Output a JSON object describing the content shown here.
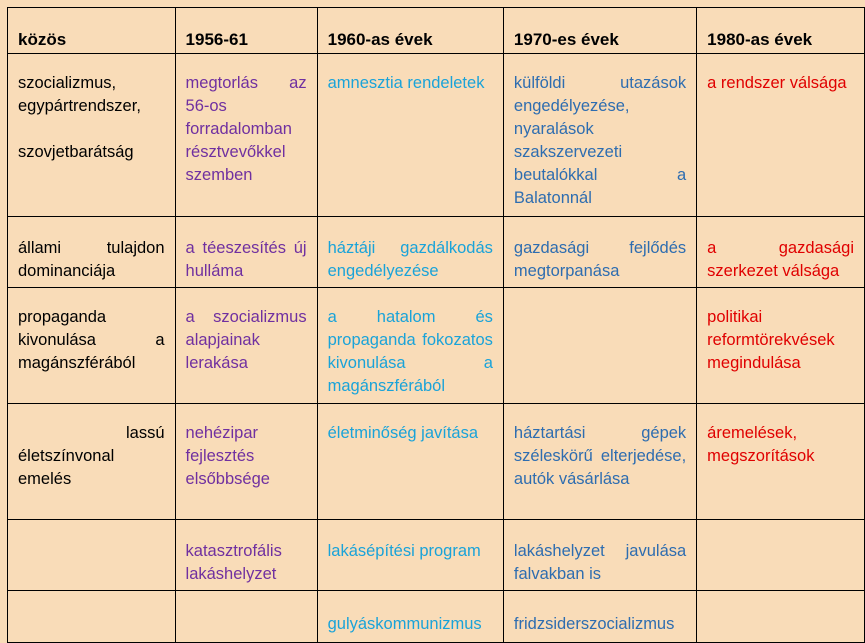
{
  "headers": [
    "közös",
    "1956-61",
    "1960-as évek",
    "1970-es évek",
    "1980-as évek"
  ],
  "rows": [
    {
      "common": [
        "szocializmus,",
        "egypártrendszer,",
        "",
        "szovjetbarátság"
      ],
      "y1956": "megtorlás az 56-os forradalomban résztvevőkkel szemben",
      "y1960": "amnesztia rendeletek",
      "y1970": "külföldi utazások engedélyezése, nyaralások szakszervezeti beutalókkal a Balatonnál",
      "y1980": "a rendszer válsága"
    },
    {
      "common": "állami tulajdon dominanciája",
      "y1956": "a téeszesítés új hulláma",
      "y1960": "háztáji gazdálkodás engedélyezése",
      "y1970": "gazdasági fejlődés megtorpanása",
      "y1980": "a gazdasági szerkezet válsága"
    },
    {
      "common": "propaganda kivonulása a magánszférából",
      "y1956": "a szocializmus alapjainak lerakása",
      "y1960": "a hatalom és propaganda fokozatos kivonulása a magánszférából",
      "y1970": "",
      "y1980": "politikai reformtörekvések megindulása"
    },
    {
      "common": "lassú életszínvonal emelés",
      "y1956": "nehézipar fejlesztés elsőbbsége",
      "y1960": "életminőség javítása",
      "y1970": "háztartási gépek széleskörű elterjedése, autók vásárlása",
      "y1980": "áremelések, megszorítások"
    },
    {
      "common": "",
      "y1956": "katasztrofális lakáshelyzet",
      "y1960": "lakásépítési program",
      "y1970": "lakáshelyzet javulása falvakban is",
      "y1980": ""
    },
    {
      "common": "",
      "y1956": "",
      "y1960": "gulyáskommunizmus",
      "y1970": "fridzsiderszocializmus",
      "y1980": ""
    }
  ]
}
